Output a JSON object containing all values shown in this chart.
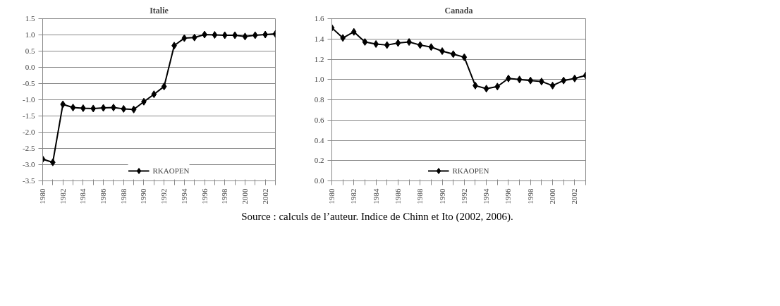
{
  "chart_data": [
    {
      "type": "line",
      "title": "Italie",
      "categories": [
        "1980",
        null,
        "1982",
        null,
        "1984",
        null,
        "1986",
        null,
        "1988",
        null,
        "1990",
        null,
        "1992",
        null,
        "1994",
        null,
        "1996",
        null,
        "1998",
        null,
        "2000",
        null,
        "2002",
        null
      ],
      "series": [
        {
          "name": "RKAOPEN",
          "color": "#000000",
          "values": [
            -2.83,
            -2.93,
            -1.14,
            -1.24,
            -1.26,
            -1.27,
            -1.25,
            -1.24,
            -1.28,
            -1.3,
            -1.06,
            -0.83,
            -0.59,
            0.67,
            0.9,
            0.92,
            1.01,
            1.0,
            0.99,
            0.99,
            0.95,
            0.99,
            1.01,
            1.03
          ]
        }
      ],
      "ylim": [
        -3.5,
        1.5
      ],
      "yticks": [
        {
          "value": -3.5,
          "label": "-3.5"
        },
        {
          "value": -3,
          "label": "-3.0"
        },
        {
          "value": -2.5,
          "label": "-2.5"
        },
        {
          "value": -2,
          "label": "-2.0"
        },
        {
          "value": -1.5,
          "label": "-1.5"
        },
        {
          "value": -1,
          "label": "-1.0"
        },
        {
          "value": -0.5,
          "label": "-0.5"
        },
        {
          "value": 0,
          "label": "0.0"
        },
        {
          "value": 0.5,
          "label": "0.5"
        },
        {
          "value": 1,
          "label": "1.0"
        },
        {
          "value": 1.5,
          "label": "1.5"
        }
      ],
      "grid": "y",
      "legend": "bottom",
      "marker": "diamond",
      "line_style": "solid",
      "annotations": [
        "Source : calculs de l’auteur. Indice de Chinn et Ito (2002, 2006)."
      ]
    },
    {
      "type": "line",
      "title": "Canada",
      "categories": [
        "1980",
        null,
        "1982",
        null,
        "1984",
        null,
        "1986",
        null,
        "1988",
        null,
        "1990",
        null,
        "1992",
        null,
        "1994",
        null,
        "1996",
        null,
        "1998",
        null,
        "2000",
        null,
        "2002",
        null
      ],
      "series": [
        {
          "name": "RKAOPEN",
          "color": "#000000",
          "values": [
            1.51,
            1.41,
            1.47,
            1.37,
            1.35,
            1.34,
            1.36,
            1.37,
            1.34,
            1.32,
            1.28,
            1.25,
            1.22,
            0.94,
            0.91,
            0.93,
            1.01,
            1.0,
            0.99,
            0.98,
            0.94,
            0.99,
            1.01,
            1.04
          ]
        }
      ],
      "ylim": [
        0,
        1.6
      ],
      "yticks": [
        {
          "value": 0,
          "label": "0.0"
        },
        {
          "value": 0.2,
          "label": "0.2"
        },
        {
          "value": 0.4,
          "label": "0.4"
        },
        {
          "value": 0.6,
          "label": "0.6"
        },
        {
          "value": 0.8,
          "label": "0.8"
        },
        {
          "value": 1,
          "label": "1.0"
        },
        {
          "value": 1.2,
          "label": "1.2"
        },
        {
          "value": 1.4,
          "label": "1.4"
        },
        {
          "value": 1.6,
          "label": "1.6"
        }
      ],
      "grid": "y",
      "legend": "bottom",
      "marker": "diamond",
      "line_style": "solid"
    }
  ]
}
